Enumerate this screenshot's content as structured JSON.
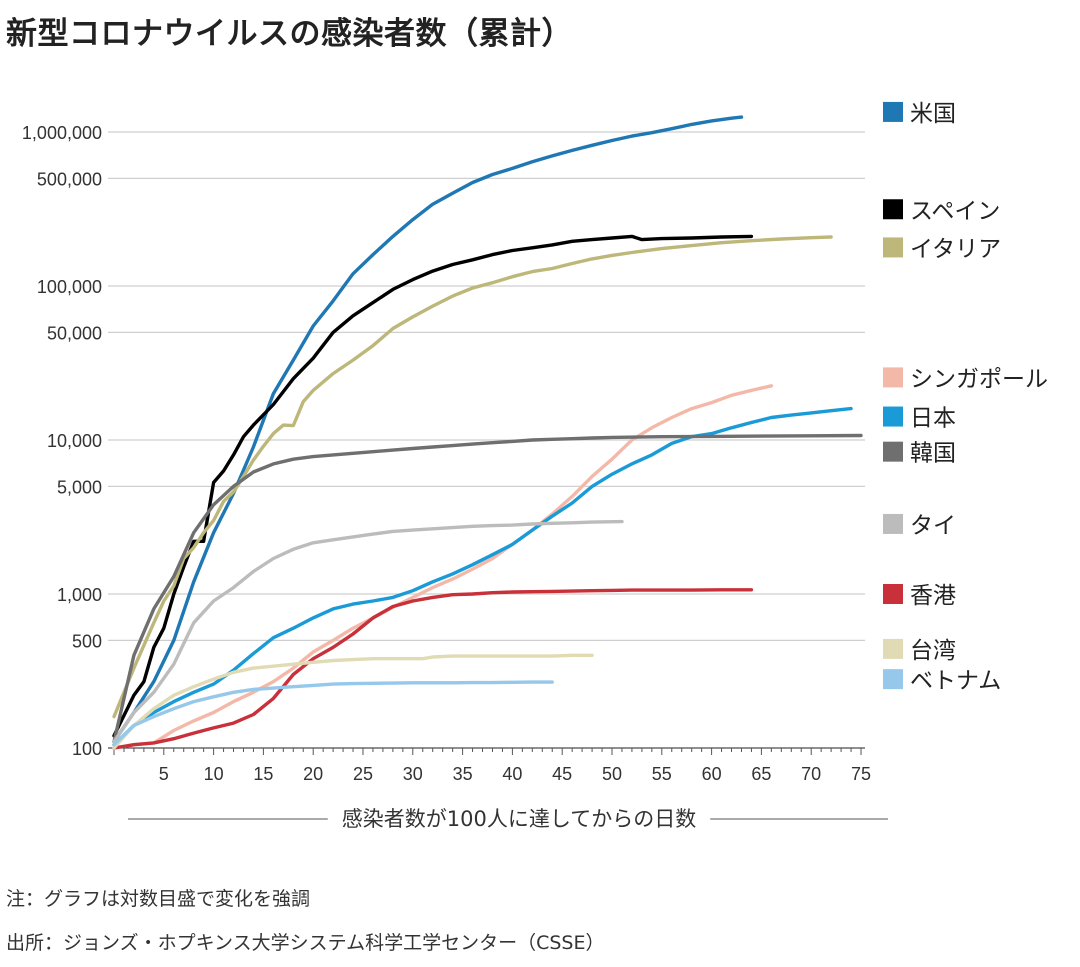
{
  "title": "新型コロナウイルスの感染者数（累計）",
  "notes": {
    "note": "注：グラフは対数目盛で変化を強調",
    "source": "出所：ジョンズ・ホプキンス大学システム科学工学センター（CSSE）"
  },
  "chart_data": {
    "type": "line",
    "title": "新型コロナウイルスの感染者数（累計）",
    "xlabel": "感染者数が100人に達してからの日数",
    "ylabel": "",
    "yscale": "log",
    "xlim": [
      0,
      75
    ],
    "ylim": [
      100,
      1500000
    ],
    "grid": true,
    "legend_position": "right",
    "x_ticks": [
      5,
      10,
      15,
      20,
      25,
      30,
      35,
      40,
      45,
      50,
      55,
      60,
      65,
      70,
      75
    ],
    "y_ticks": [
      {
        "value": 100,
        "label": "100"
      },
      {
        "value": 500,
        "label": "500"
      },
      {
        "value": 1000,
        "label": "1,000"
      },
      {
        "value": 5000,
        "label": "5,000"
      },
      {
        "value": 10000,
        "label": "10,000"
      },
      {
        "value": 50000,
        "label": "50,000"
      },
      {
        "value": 100000,
        "label": "100,000"
      },
      {
        "value": 500000,
        "label": "500,000"
      },
      {
        "value": 1000000,
        "label": "1,000,000"
      }
    ],
    "series": [
      {
        "name": "米国",
        "color": "#1f77b4",
        "x": [
          0,
          2,
          4,
          6,
          8,
          10,
          12,
          14,
          16,
          18,
          20,
          22,
          24,
          26,
          28,
          30,
          32,
          34,
          36,
          38,
          40,
          42,
          44,
          46,
          48,
          50,
          52,
          54,
          56,
          58,
          60,
          62,
          63
        ],
        "y": [
          110,
          170,
          270,
          500,
          1200,
          2500,
          4500,
          9000,
          20000,
          33000,
          55000,
          80000,
          120000,
          160000,
          210000,
          270000,
          340000,
          400000,
          470000,
          530000,
          580000,
          640000,
          700000,
          760000,
          820000,
          880000,
          940000,
          990000,
          1050000,
          1120000,
          1180000,
          1230000,
          1250000
        ]
      },
      {
        "name": "スペイン",
        "color": "#000000",
        "x": [
          0,
          2,
          3,
          4,
          5,
          6,
          7,
          8,
          9,
          10,
          11,
          12,
          13,
          14,
          16,
          18,
          20,
          22,
          24,
          26,
          28,
          30,
          32,
          34,
          36,
          38,
          40,
          42,
          44,
          46,
          48,
          50,
          52,
          53,
          55,
          58,
          61,
          64
        ],
        "y": [
          120,
          220,
          270,
          450,
          600,
          1000,
          1500,
          2200,
          2200,
          5300,
          6300,
          8000,
          10500,
          12500,
          17000,
          25000,
          34000,
          50000,
          64000,
          78000,
          95000,
          110000,
          125000,
          138000,
          148000,
          160000,
          170000,
          177000,
          185000,
          195000,
          200000,
          205000,
          210000,
          200000,
          203000,
          205000,
          208000,
          210000
        ]
      },
      {
        "name": "イタリア",
        "color": "#bdb77a",
        "x": [
          0,
          2,
          4,
          5,
          6,
          7,
          8,
          9,
          10,
          11,
          12,
          13,
          14,
          15,
          16,
          17,
          18,
          19,
          20,
          22,
          24,
          26,
          28,
          30,
          32,
          34,
          36,
          38,
          40,
          42,
          44,
          46,
          48,
          50,
          52,
          55,
          58,
          61,
          64,
          67,
          70,
          72
        ],
        "y": [
          160,
          330,
          650,
          900,
          1130,
          1700,
          2000,
          2500,
          3000,
          4000,
          4600,
          5800,
          7400,
          9100,
          11000,
          12500,
          12400,
          17700,
          21000,
          27000,
          33000,
          41000,
          53000,
          63000,
          74000,
          86000,
          97000,
          105000,
          115000,
          124000,
          130000,
          140000,
          150000,
          158000,
          165000,
          175000,
          183000,
          191000,
          197000,
          202000,
          206000,
          208000
        ]
      },
      {
        "name": "シンガポール",
        "color": "#f4b8a8",
        "x": [
          0,
          2,
          4,
          6,
          8,
          10,
          12,
          14,
          16,
          18,
          20,
          22,
          24,
          26,
          28,
          30,
          32,
          34,
          36,
          38,
          40,
          42,
          44,
          46,
          48,
          50,
          52,
          54,
          56,
          58,
          60,
          62,
          64,
          66
        ],
        "y": [
          100,
          105,
          108,
          130,
          150,
          170,
          200,
          230,
          270,
          330,
          420,
          500,
          600,
          700,
          820,
          950,
          1100,
          1250,
          1450,
          1700,
          2100,
          2600,
          3300,
          4300,
          5800,
          7500,
          10000,
          12000,
          14000,
          16000,
          17500,
          19500,
          21000,
          22500
        ]
      },
      {
        "name": "日本",
        "color": "#1a9ad6",
        "x": [
          0,
          2,
          4,
          6,
          8,
          10,
          12,
          14,
          16,
          18,
          20,
          22,
          24,
          26,
          28,
          30,
          32,
          34,
          36,
          38,
          40,
          42,
          44,
          46,
          48,
          50,
          52,
          54,
          56,
          58,
          60,
          62,
          64,
          66,
          68,
          70,
          72,
          74
        ],
        "y": [
          105,
          140,
          170,
          200,
          230,
          260,
          320,
          410,
          520,
          600,
          700,
          800,
          860,
          900,
          950,
          1050,
          1200,
          1350,
          1550,
          1800,
          2100,
          2600,
          3200,
          3900,
          5000,
          6000,
          7000,
          8000,
          9500,
          10500,
          11000,
          12000,
          13000,
          14000,
          14500,
          15000,
          15500,
          16000
        ]
      },
      {
        "name": "韓国",
        "color": "#6f6f6f",
        "x": [
          0,
          2,
          4,
          6,
          8,
          10,
          12,
          14,
          16,
          18,
          20,
          22,
          24,
          26,
          28,
          30,
          32,
          34,
          36,
          38,
          40,
          42,
          44,
          46,
          48,
          50,
          55,
          60,
          65,
          70,
          75
        ],
        "y": [
          110,
          400,
          800,
          1300,
          2500,
          3800,
          5000,
          6200,
          7000,
          7500,
          7800,
          8000,
          8200,
          8400,
          8600,
          8800,
          9000,
          9200,
          9400,
          9600,
          9800,
          10000,
          10100,
          10200,
          10300,
          10400,
          10500,
          10550,
          10600,
          10650,
          10700
        ]
      },
      {
        "name": "タイ",
        "color": "#bcbcbc",
        "x": [
          0,
          2,
          4,
          6,
          8,
          10,
          12,
          14,
          16,
          18,
          20,
          22,
          24,
          26,
          28,
          30,
          32,
          34,
          36,
          38,
          40,
          42,
          44,
          46,
          48,
          51
        ],
        "y": [
          110,
          170,
          230,
          350,
          650,
          900,
          1100,
          1400,
          1700,
          1950,
          2150,
          2250,
          2350,
          2450,
          2550,
          2600,
          2650,
          2700,
          2750,
          2780,
          2800,
          2850,
          2880,
          2900,
          2930,
          2950
        ]
      },
      {
        "name": "香港",
        "color": "#c8303a",
        "x": [
          0,
          2,
          4,
          6,
          8,
          10,
          12,
          14,
          16,
          18,
          20,
          22,
          24,
          26,
          28,
          30,
          32,
          34,
          36,
          38,
          40,
          42,
          44,
          46,
          48,
          50,
          52,
          55,
          58,
          61,
          64
        ],
        "y": [
          100,
          105,
          108,
          115,
          125,
          135,
          145,
          165,
          210,
          300,
          380,
          450,
          550,
          700,
          830,
          900,
          950,
          990,
          1000,
          1020,
          1030,
          1035,
          1040,
          1045,
          1050,
          1055,
          1060,
          1060,
          1060,
          1065,
          1065
        ]
      },
      {
        "name": "台湾",
        "color": "#e1dbb5",
        "x": [
          0,
          2,
          4,
          6,
          8,
          10,
          12,
          14,
          16,
          18,
          20,
          22,
          24,
          26,
          28,
          30,
          31,
          32,
          34,
          36,
          38,
          40,
          42,
          44,
          46,
          48
        ],
        "y": [
          100,
          140,
          180,
          220,
          250,
          280,
          310,
          330,
          340,
          350,
          360,
          370,
          375,
          380,
          380,
          380,
          380,
          390,
          395,
          395,
          395,
          395,
          395,
          395,
          400,
          400
        ]
      },
      {
        "name": "ベトナム",
        "color": "#95c8ea",
        "x": [
          0,
          2,
          4,
          6,
          8,
          10,
          12,
          14,
          16,
          18,
          20,
          22,
          24,
          26,
          28,
          30,
          32,
          34,
          36,
          38,
          40,
          42,
          44
        ],
        "y": [
          105,
          140,
          160,
          180,
          200,
          215,
          230,
          240,
          245,
          250,
          255,
          260,
          262,
          263,
          264,
          265,
          265,
          265,
          266,
          266,
          267,
          268,
          268
        ]
      }
    ],
    "legend_label_y": [
      {
        "name": "米国",
        "value": 1350000
      },
      {
        "name": "スペイン",
        "value": 315000
      },
      {
        "name": "イタリア",
        "value": 178000
      },
      {
        "name": "シンガポール",
        "value": 25500
      },
      {
        "name": "日本",
        "value": 14200
      },
      {
        "name": "韓国",
        "value": 8400
      },
      {
        "name": "タイ",
        "value": 2850
      },
      {
        "name": "香港",
        "value": 1000
      },
      {
        "name": "台湾",
        "value": 440
      },
      {
        "name": "ベトナム",
        "value": 280
      }
    ]
  }
}
